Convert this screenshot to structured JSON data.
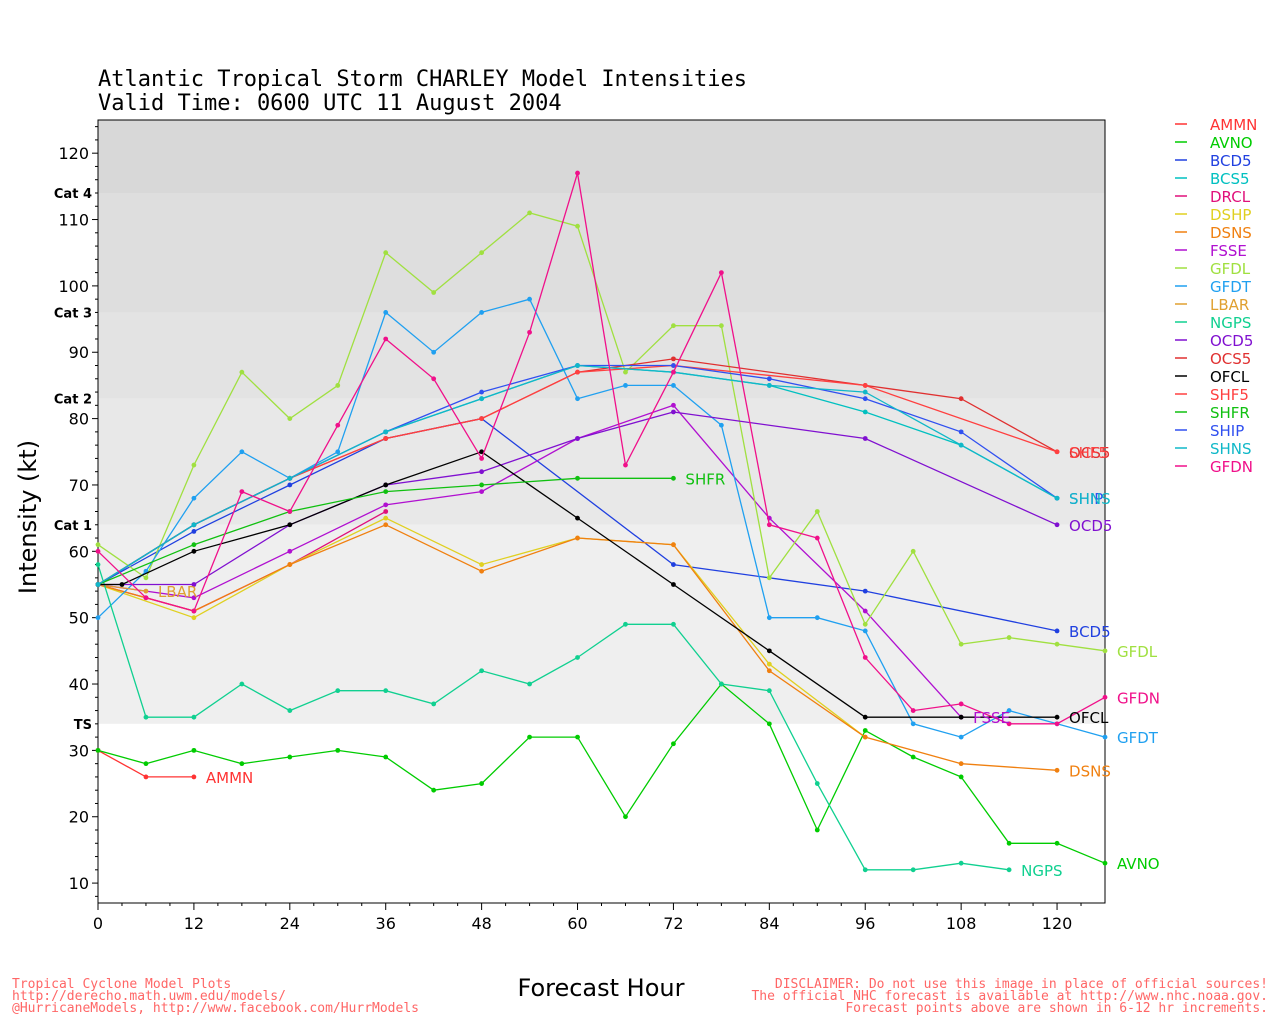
{
  "chart_data": {
    "type": "line",
    "title": "Atlantic Tropical Storm CHARLEY Model Intensities",
    "subtitle": "Valid Time: 0600 UTC 11 August 2004",
    "xlabel": "Forecast Hour",
    "ylabel": "Intensity (kt)",
    "xlim": [
      0,
      126
    ],
    "ylim": [
      7,
      125
    ],
    "xticks": [
      0,
      12,
      24,
      36,
      48,
      60,
      72,
      84,
      96,
      108,
      120
    ],
    "yticks": [
      10,
      20,
      30,
      40,
      50,
      60,
      70,
      80,
      90,
      100,
      110,
      120
    ],
    "bands": [
      {
        "label": "TS",
        "y0": 34,
        "y1": 64,
        "color": "#efefef"
      },
      {
        "label": "Cat 1",
        "y0": 64,
        "y1": 83,
        "color": "#e8e8e8"
      },
      {
        "label": "Cat 2",
        "y0": 83,
        "y1": 96,
        "color": "#e3e3e3"
      },
      {
        "label": "Cat 3",
        "y0": 96,
        "y1": 114,
        "color": "#dedede"
      },
      {
        "label": "Cat 4",
        "y0": 114,
        "y1": 125,
        "color": "#d8d8d8"
      }
    ],
    "series": [
      {
        "name": "AMMN",
        "color": "#ff3333",
        "points": [
          [
            0,
            30
          ],
          [
            6,
            26
          ],
          [
            12,
            26
          ]
        ],
        "endlabel": "AMMN"
      },
      {
        "name": "AVNO",
        "color": "#00cc00",
        "points": [
          [
            0,
            30
          ],
          [
            6,
            28
          ],
          [
            12,
            30
          ],
          [
            18,
            28
          ],
          [
            24,
            29
          ],
          [
            30,
            30
          ],
          [
            36,
            29
          ],
          [
            42,
            24
          ],
          [
            48,
            25
          ],
          [
            54,
            32
          ],
          [
            60,
            32
          ],
          [
            66,
            20
          ],
          [
            72,
            31
          ],
          [
            78,
            40
          ],
          [
            84,
            34
          ],
          [
            90,
            18
          ],
          [
            96,
            33
          ],
          [
            102,
            29
          ],
          [
            108,
            26
          ],
          [
            114,
            16
          ],
          [
            120,
            16
          ],
          [
            126,
            13
          ]
        ],
        "endlabel": "AVNO"
      },
      {
        "name": "BCD5",
        "color": "#2040e0",
        "points": [
          [
            0,
            55
          ],
          [
            12,
            63
          ],
          [
            24,
            70
          ],
          [
            36,
            77
          ],
          [
            48,
            80
          ],
          [
            72,
            58
          ],
          [
            96,
            54
          ],
          [
            120,
            48
          ]
        ],
        "endlabel": "BCD5"
      },
      {
        "name": "BCS5",
        "color": "#00c0c0",
        "points": [
          [
            0,
            55
          ],
          [
            12,
            64
          ],
          [
            24,
            71
          ],
          [
            36,
            78
          ],
          [
            48,
            83
          ],
          [
            60,
            88
          ],
          [
            72,
            87
          ],
          [
            84,
            85
          ],
          [
            96,
            81
          ],
          [
            108,
            76
          ],
          [
            120,
            68
          ]
        ],
        "endlabel": ""
      },
      {
        "name": "DRCL",
        "color": "#e0107a",
        "points": [
          [
            0,
            55
          ],
          [
            6,
            53
          ],
          [
            12,
            51
          ],
          [
            24,
            58
          ],
          [
            36,
            66
          ]
        ],
        "endlabel": ""
      },
      {
        "name": "DSHP",
        "color": "#e0d020",
        "points": [
          [
            0,
            55
          ],
          [
            12,
            50
          ],
          [
            24,
            58
          ],
          [
            36,
            65
          ],
          [
            48,
            58
          ],
          [
            60,
            62
          ],
          [
            72,
            61
          ],
          [
            84,
            43
          ],
          [
            96,
            32
          ]
        ],
        "endlabel": ""
      },
      {
        "name": "DSNS",
        "color": "#f08010",
        "points": [
          [
            0,
            55
          ],
          [
            12,
            51
          ],
          [
            24,
            58
          ],
          [
            36,
            64
          ],
          [
            48,
            57
          ],
          [
            60,
            62
          ],
          [
            72,
            61
          ],
          [
            84,
            42
          ],
          [
            96,
            32
          ],
          [
            108,
            28
          ],
          [
            120,
            27
          ]
        ],
        "endlabel": "DSNS"
      },
      {
        "name": "FSSE",
        "color": "#b010d0",
        "points": [
          [
            0,
            55
          ],
          [
            12,
            53
          ],
          [
            24,
            60
          ],
          [
            36,
            67
          ],
          [
            48,
            69
          ],
          [
            60,
            77
          ],
          [
            72,
            82
          ],
          [
            84,
            65
          ],
          [
            96,
            51
          ],
          [
            108,
            35
          ]
        ],
        "endlabel": "FSSE"
      },
      {
        "name": "GFDL",
        "color": "#a0e040",
        "points": [
          [
            0,
            61
          ],
          [
            6,
            56
          ],
          [
            12,
            73
          ],
          [
            18,
            87
          ],
          [
            24,
            80
          ],
          [
            30,
            85
          ],
          [
            36,
            105
          ],
          [
            42,
            99
          ],
          [
            48,
            105
          ],
          [
            54,
            111
          ],
          [
            60,
            109
          ],
          [
            66,
            87
          ],
          [
            72,
            94
          ],
          [
            78,
            94
          ],
          [
            84,
            56
          ],
          [
            90,
            66
          ],
          [
            96,
            49
          ],
          [
            102,
            60
          ],
          [
            108,
            46
          ],
          [
            114,
            47
          ],
          [
            120,
            46
          ],
          [
            126,
            45
          ]
        ],
        "endlabel": "GFDL"
      },
      {
        "name": "GFDT",
        "color": "#20a0f0",
        "points": [
          [
            0,
            50
          ],
          [
            6,
            57
          ],
          [
            12,
            68
          ],
          [
            18,
            75
          ],
          [
            24,
            71
          ],
          [
            30,
            75
          ],
          [
            36,
            96
          ],
          [
            42,
            90
          ],
          [
            48,
            96
          ],
          [
            54,
            98
          ],
          [
            60,
            83
          ],
          [
            66,
            85
          ],
          [
            72,
            85
          ],
          [
            78,
            79
          ],
          [
            84,
            50
          ],
          [
            90,
            50
          ],
          [
            96,
            48
          ],
          [
            102,
            34
          ],
          [
            108,
            32
          ],
          [
            114,
            36
          ],
          [
            120,
            34
          ],
          [
            126,
            32
          ]
        ],
        "endlabel": "GFDT"
      },
      {
        "name": "LBAR",
        "color": "#e0a030",
        "points": [
          [
            0,
            55
          ],
          [
            6,
            54
          ]
        ],
        "endlabel": "LBAR"
      },
      {
        "name": "NGPS",
        "color": "#10d090",
        "points": [
          [
            0,
            58
          ],
          [
            6,
            35
          ],
          [
            12,
            35
          ],
          [
            18,
            40
          ],
          [
            24,
            36
          ],
          [
            30,
            39
          ],
          [
            36,
            39
          ],
          [
            42,
            37
          ],
          [
            48,
            42
          ],
          [
            54,
            40
          ],
          [
            60,
            44
          ],
          [
            66,
            49
          ],
          [
            72,
            49
          ],
          [
            78,
            40
          ],
          [
            84,
            39
          ],
          [
            90,
            25
          ],
          [
            96,
            12
          ],
          [
            102,
            12
          ],
          [
            108,
            13
          ],
          [
            114,
            12
          ]
        ],
        "endlabel": "NGPS"
      },
      {
        "name": "OCD5",
        "color": "#8010d0",
        "points": [
          [
            0,
            55
          ],
          [
            12,
            55
          ],
          [
            24,
            64
          ],
          [
            36,
            70
          ],
          [
            48,
            72
          ],
          [
            60,
            77
          ],
          [
            72,
            81
          ],
          [
            96,
            77
          ],
          [
            120,
            64
          ]
        ],
        "endlabel": "OCD5"
      },
      {
        "name": "OCS5",
        "color": "#e03030",
        "points": [
          [
            0,
            55
          ],
          [
            12,
            64
          ],
          [
            24,
            71
          ],
          [
            36,
            77
          ],
          [
            48,
            80
          ],
          [
            60,
            87
          ],
          [
            72,
            89
          ],
          [
            96,
            85
          ],
          [
            108,
            83
          ],
          [
            120,
            75
          ]
        ],
        "endlabel": "OCS5"
      },
      {
        "name": "OFCL",
        "color": "#000000",
        "points": [
          [
            0,
            55
          ],
          [
            3,
            55
          ],
          [
            12,
            60
          ],
          [
            24,
            64
          ],
          [
            36,
            70
          ],
          [
            48,
            75
          ],
          [
            60,
            65
          ],
          [
            72,
            55
          ],
          [
            84,
            45
          ],
          [
            96,
            35
          ],
          [
            108,
            35
          ],
          [
            120,
            35
          ]
        ],
        "endlabel": "OFCL"
      },
      {
        "name": "SHF5",
        "color": "#ff4040",
        "points": [
          [
            0,
            55
          ],
          [
            12,
            64
          ],
          [
            24,
            71
          ],
          [
            36,
            77
          ],
          [
            48,
            80
          ],
          [
            60,
            87
          ],
          [
            72,
            88
          ],
          [
            96,
            85
          ],
          [
            120,
            75
          ]
        ],
        "endlabel": "SHF5"
      },
      {
        "name": "SHFR",
        "color": "#10c010",
        "points": [
          [
            0,
            55
          ],
          [
            12,
            61
          ],
          [
            24,
            66
          ],
          [
            36,
            69
          ],
          [
            48,
            70
          ],
          [
            60,
            71
          ],
          [
            72,
            71
          ]
        ],
        "endlabel": "SHFR"
      },
      {
        "name": "SHIP",
        "color": "#3050f0",
        "points": [
          [
            0,
            55
          ],
          [
            12,
            64
          ],
          [
            24,
            71
          ],
          [
            36,
            78
          ],
          [
            48,
            84
          ],
          [
            60,
            88
          ],
          [
            72,
            88
          ],
          [
            84,
            86
          ],
          [
            96,
            83
          ],
          [
            108,
            78
          ],
          [
            120,
            68
          ]
        ],
        "endlabel": "SHIP"
      },
      {
        "name": "SHNS",
        "color": "#10b8c8",
        "points": [
          [
            0,
            55
          ],
          [
            12,
            64
          ],
          [
            24,
            71
          ],
          [
            36,
            78
          ],
          [
            48,
            83
          ],
          [
            60,
            88
          ],
          [
            72,
            87
          ],
          [
            84,
            85
          ],
          [
            96,
            84
          ],
          [
            108,
            76
          ],
          [
            120,
            68
          ]
        ],
        "endlabel": "SHNS"
      },
      {
        "name": "GFDN",
        "color": "#f0108a",
        "points": [
          [
            0,
            60
          ],
          [
            6,
            53
          ],
          [
            12,
            51
          ],
          [
            18,
            69
          ],
          [
            24,
            66
          ],
          [
            30,
            79
          ],
          [
            36,
            92
          ],
          [
            42,
            86
          ],
          [
            48,
            74
          ],
          [
            54,
            93
          ],
          [
            60,
            117
          ],
          [
            66,
            73
          ],
          [
            72,
            87
          ],
          [
            78,
            102
          ],
          [
            84,
            64
          ],
          [
            90,
            62
          ],
          [
            96,
            44
          ],
          [
            102,
            36
          ],
          [
            108,
            37
          ],
          [
            114,
            34
          ],
          [
            120,
            34
          ],
          [
            126,
            38
          ]
        ],
        "endlabel": "GFDN"
      }
    ]
  },
  "footer": {
    "left": [
      "Tropical Cyclone Model Plots",
      "http://derecho.math.uwm.edu/models/",
      "@HurricaneModels, http://www.facebook.com/HurrModels"
    ],
    "right": [
      "DISCLAIMER: Do not use this image in place of official sources!",
      "The official NHC forecast is available at http://www.nhc.noaa.gov.",
      "Forecast points above are shown in 6-12 hr increments."
    ]
  }
}
